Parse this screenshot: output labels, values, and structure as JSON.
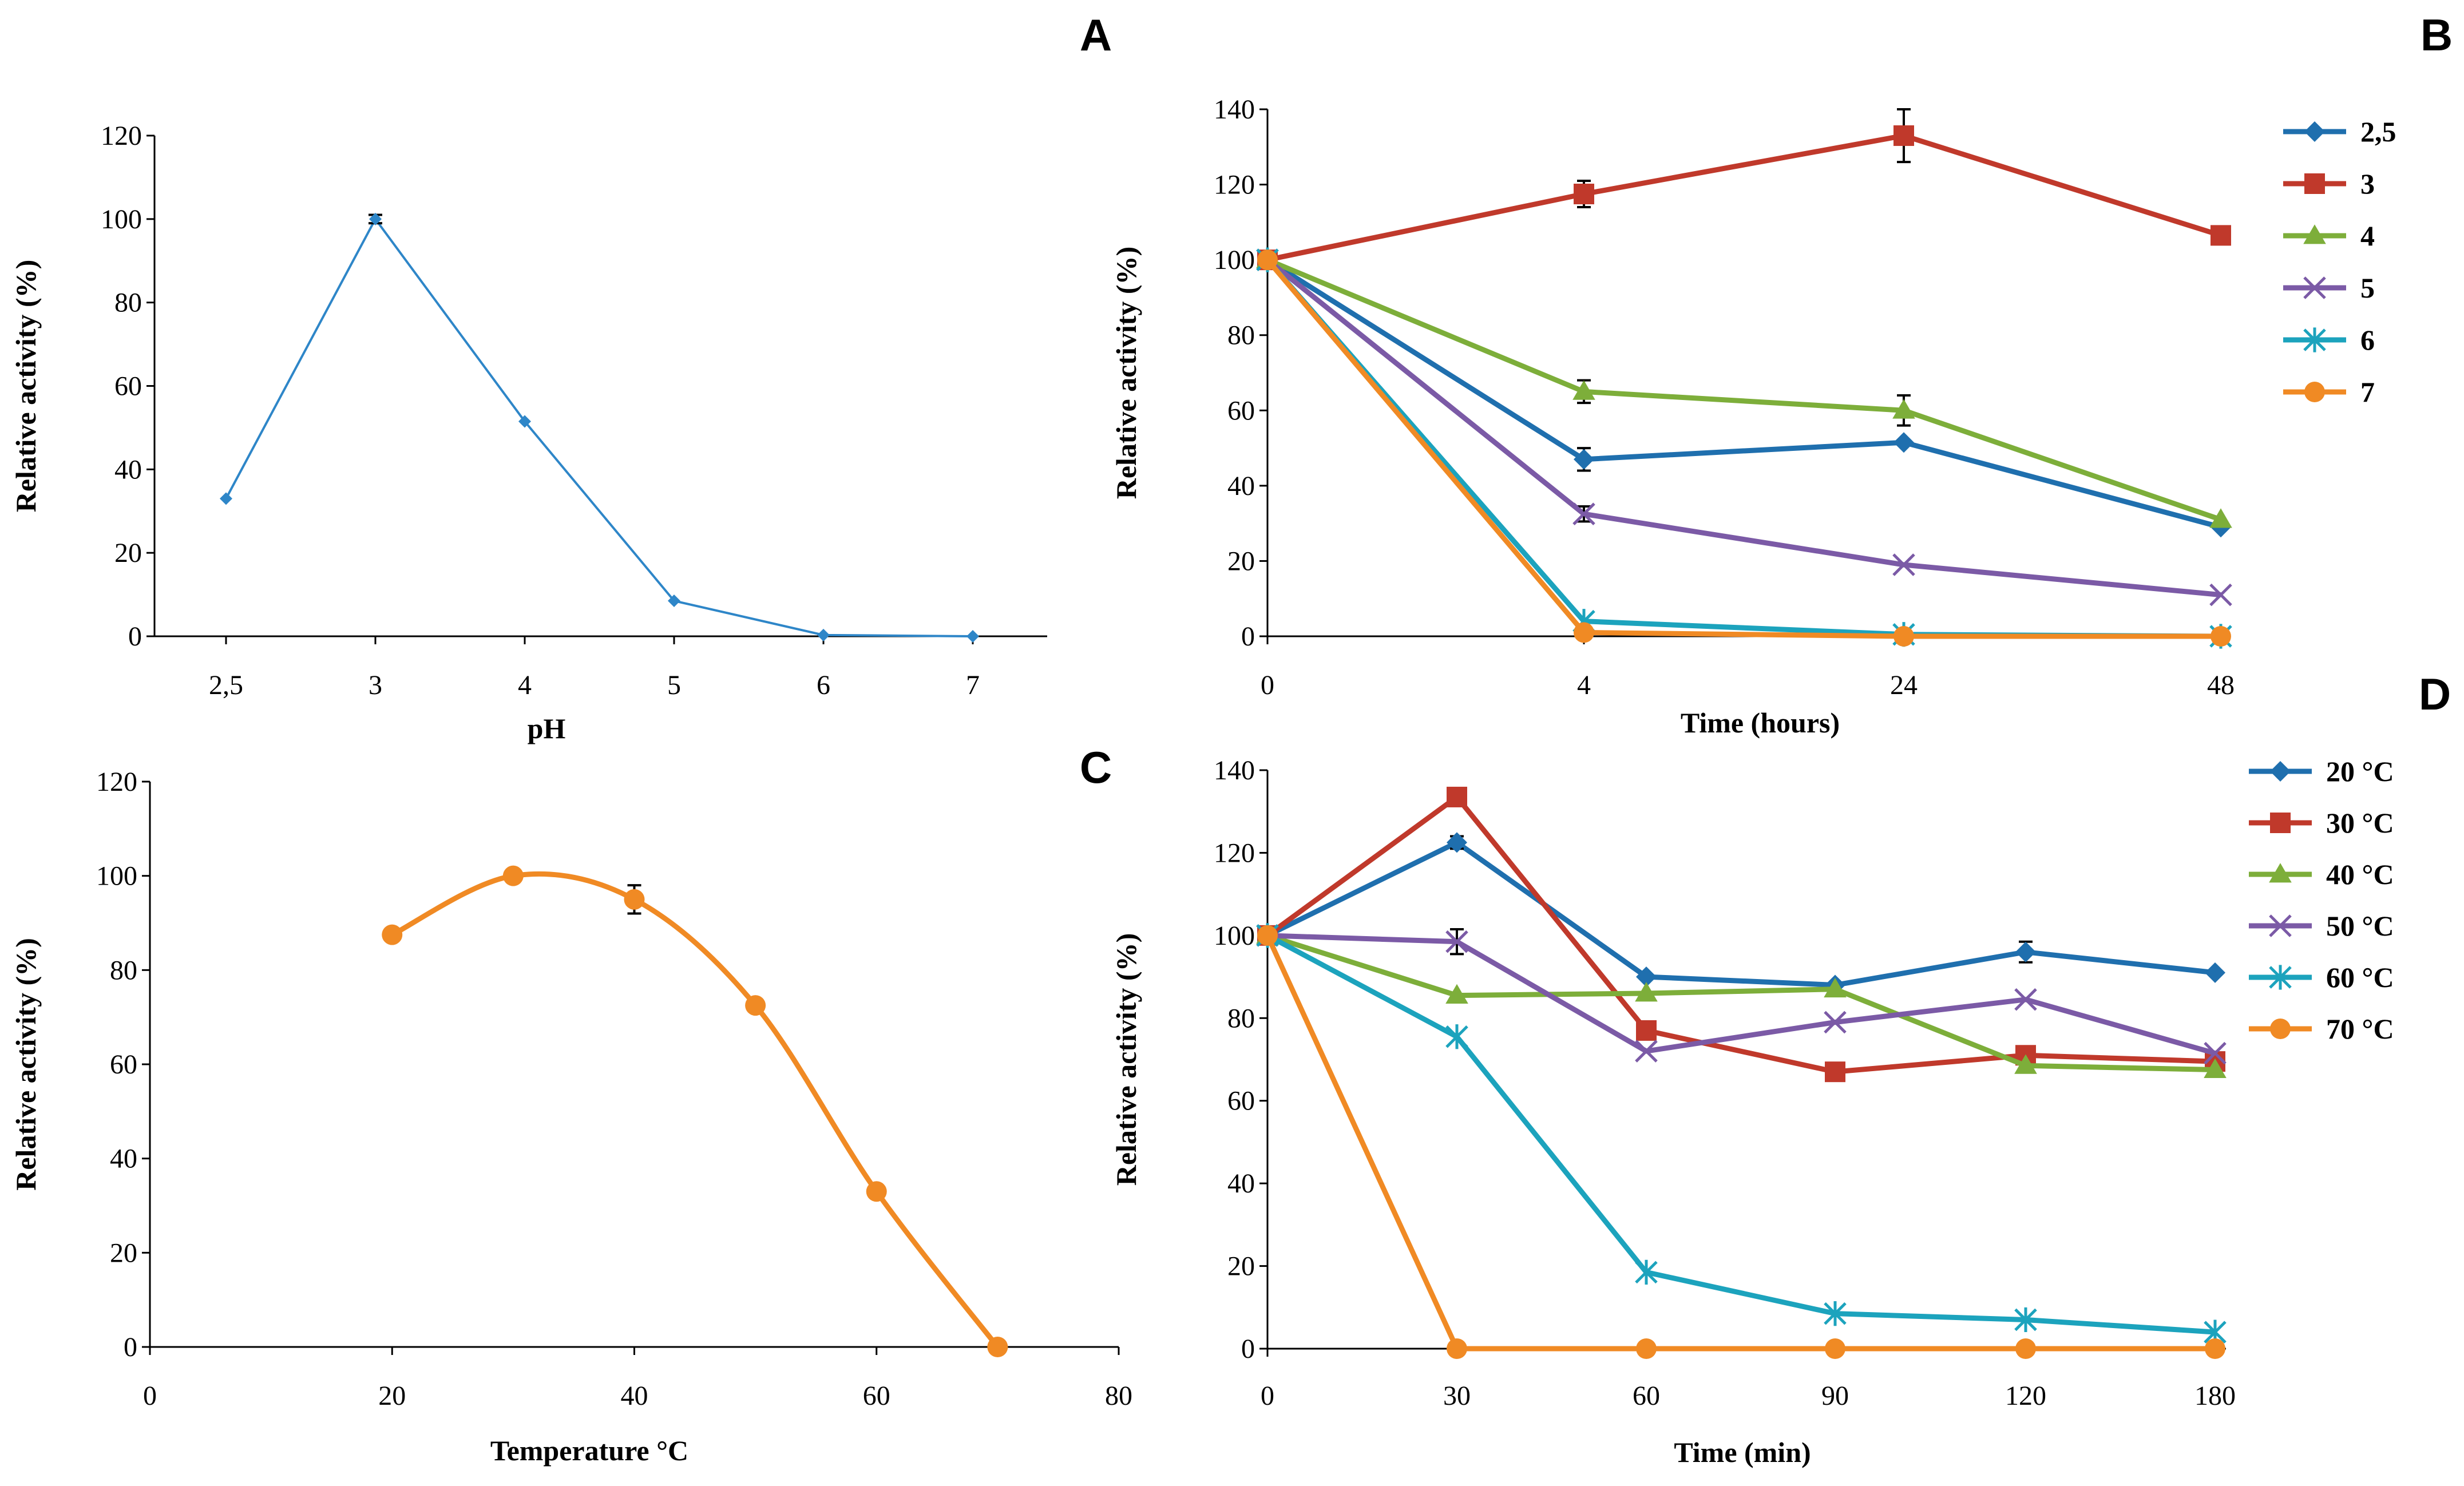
{
  "colors": {
    "blue_a": "#2E86C8",
    "s_blue": "#1F6FAE",
    "s_red": "#C0392B",
    "s_green": "#7DAE3A",
    "s_purple": "#7B5AA6",
    "s_teal": "#1CA3BD",
    "s_orange": "#F08A24"
  },
  "chart_data": [
    {
      "panel": "A",
      "panel_label": "A",
      "type": "line",
      "xlabel": "pH",
      "ylabel": "Relative activity (%)",
      "categories": [
        "2,5",
        "3",
        "4",
        "5",
        "6",
        "7"
      ],
      "ylim": [
        0,
        120
      ],
      "yticks": [
        "0",
        "20",
        "40",
        "60",
        "80",
        "100",
        "120"
      ],
      "series": [
        {
          "name": "activity",
          "values": [
            33,
            100,
            51.5,
            8.5,
            0.3,
            0
          ],
          "errors": [
            0,
            1,
            0,
            0,
            0,
            0
          ],
          "color": "#2E86C8",
          "marker": "diamond"
        }
      ]
    },
    {
      "panel": "B",
      "panel_label": "B",
      "type": "line",
      "xlabel": "Time (hours)",
      "ylabel": "Relative activity (%)",
      "categories": [
        "0",
        "4",
        "24",
        "48"
      ],
      "ylim": [
        0,
        140
      ],
      "yticks": [
        "0",
        "20",
        "40",
        "60",
        "80",
        "100",
        "120",
        "140"
      ],
      "legend_position": "right",
      "series": [
        {
          "name": "2,5",
          "values": [
            100,
            47,
            51.5,
            29
          ],
          "errors": [
            0,
            3,
            0,
            0
          ],
          "color": "#1F6FAE",
          "marker": "diamond"
        },
        {
          "name": "3",
          "values": [
            100,
            117.5,
            133,
            106.5
          ],
          "errors": [
            0,
            3.5,
            7,
            0
          ],
          "color": "#C0392B",
          "marker": "square"
        },
        {
          "name": "4",
          "values": [
            100,
            65,
            60,
            31
          ],
          "errors": [
            0,
            3,
            4,
            0
          ],
          "color": "#7DAE3A",
          "marker": "triangle"
        },
        {
          "name": "5",
          "values": [
            100,
            32.5,
            19,
            11
          ],
          "errors": [
            0,
            2,
            0,
            0
          ],
          "color": "#7B5AA6",
          "marker": "x"
        },
        {
          "name": "6",
          "values": [
            100,
            4,
            0.5,
            0
          ],
          "errors": [
            0,
            0,
            0,
            0
          ],
          "color": "#1CA3BD",
          "marker": "star"
        },
        {
          "name": "7",
          "values": [
            100,
            1,
            0,
            0
          ],
          "errors": [
            0,
            0,
            0,
            0
          ],
          "color": "#F08A24",
          "marker": "circle"
        }
      ]
    },
    {
      "panel": "C",
      "panel_label": "C",
      "type": "scatter",
      "xlabel": "Temperature °C",
      "ylabel": "Relative activity (%)",
      "x": [
        20,
        30,
        40,
        50,
        60,
        70
      ],
      "xlim": [
        0,
        80
      ],
      "xticks": [
        "0",
        "20",
        "40",
        "60",
        "80"
      ],
      "ylim": [
        0,
        120
      ],
      "yticks": [
        "0",
        "20",
        "40",
        "60",
        "80",
        "100",
        "120"
      ],
      "series": [
        {
          "name": "activity",
          "values": [
            87.5,
            100,
            95,
            72.5,
            33,
            0
          ],
          "errors": [
            0,
            0,
            3,
            0,
            0,
            0
          ],
          "color": "#F08A24",
          "marker": "circle",
          "smooth": true
        }
      ]
    },
    {
      "panel": "D",
      "panel_label": "D",
      "type": "line",
      "xlabel": "Time (min)",
      "ylabel": "Relative activity (%)",
      "categories": [
        "0",
        "30",
        "60",
        "90",
        "120",
        "180"
      ],
      "ylim": [
        0,
        140
      ],
      "yticks": [
        "0",
        "20",
        "40",
        "60",
        "80",
        "100",
        "120",
        "140"
      ],
      "legend_position": "right",
      "series": [
        {
          "name": "20 °C",
          "values": [
            100,
            122.5,
            90,
            88,
            96,
            91
          ],
          "errors": [
            0,
            1.5,
            0,
            0,
            2.5,
            0
          ],
          "color": "#1F6FAE",
          "marker": "diamond"
        },
        {
          "name": "30 °C",
          "values": [
            100,
            133.5,
            77,
            67,
            71,
            69.5
          ],
          "errors": [
            0,
            0,
            0,
            0,
            0,
            0
          ],
          "color": "#C0392B",
          "marker": "square"
        },
        {
          "name": "40 °C",
          "values": [
            100,
            85.5,
            86,
            87,
            68.5,
            67.5
          ],
          "errors": [
            0,
            0,
            0,
            0,
            0,
            0
          ],
          "color": "#7DAE3A",
          "marker": "triangle"
        },
        {
          "name": "50 °C",
          "values": [
            100,
            98.5,
            72,
            79,
            84.5,
            71.5
          ],
          "errors": [
            0,
            3,
            0,
            0,
            0,
            0
          ],
          "color": "#7B5AA6",
          "marker": "x"
        },
        {
          "name": "60 °C",
          "values": [
            100,
            75.5,
            18.5,
            8.5,
            7,
            4
          ],
          "errors": [
            0,
            0,
            0,
            0,
            0,
            0
          ],
          "color": "#1CA3BD",
          "marker": "star"
        },
        {
          "name": "70 °C",
          "values": [
            100,
            0,
            0,
            0,
            0,
            0
          ],
          "errors": [
            0,
            0,
            0,
            0,
            0,
            0
          ],
          "color": "#F08A24",
          "marker": "circle"
        }
      ]
    }
  ]
}
